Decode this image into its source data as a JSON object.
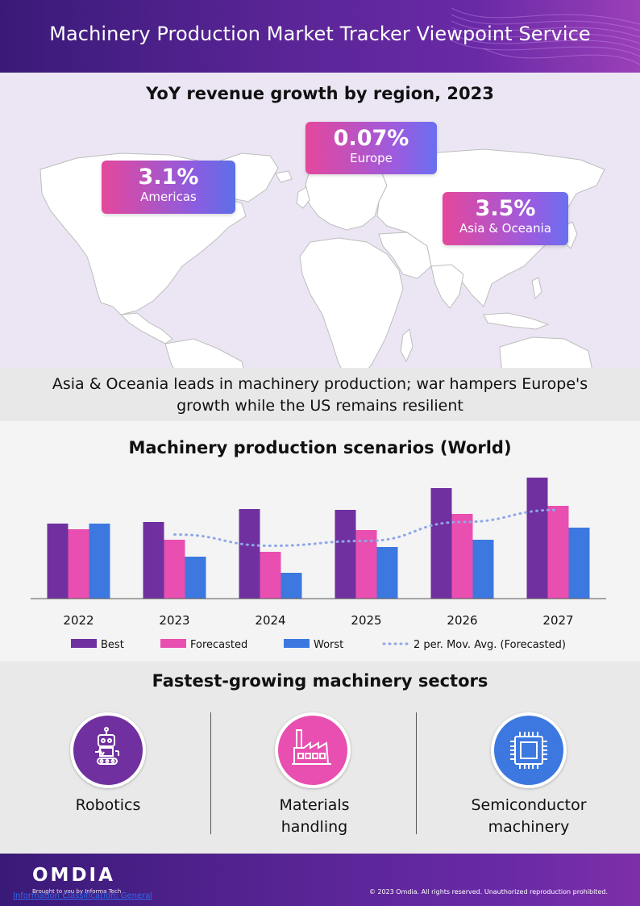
{
  "header": {
    "title": "Machinery Production Market Tracker Viewpoint Service"
  },
  "map_section": {
    "title": "YoY revenue growth by region, 2023",
    "callouts": {
      "americas": {
        "value": "3.1%",
        "region": "Americas"
      },
      "europe": {
        "value": "0.07%",
        "region": "Europe"
      },
      "asia": {
        "value": "3.5%",
        "region": "Asia & Oceania"
      }
    }
  },
  "summary": {
    "line1": "Asia & Oceania leads in machinery production; war hampers Europe's",
    "line2": "growth while the US remains resilient"
  },
  "chart_section": {
    "title": "Machinery production scenarios (World)"
  },
  "chart_data": {
    "type": "bar",
    "title": "Machinery production scenarios (World)",
    "categories": [
      "2022",
      "2023",
      "2024",
      "2025",
      "2026",
      "2027"
    ],
    "series": [
      {
        "name": "Best",
        "color": "#7030a0",
        "values": [
          93,
          95,
          111,
          110,
          137,
          150
        ]
      },
      {
        "name": "Forecasted",
        "color": "#e84fb0",
        "values": [
          86,
          73,
          58,
          85,
          105,
          115
        ]
      },
      {
        "name": "Worst",
        "color": "#3c78e0",
        "values": [
          93,
          52,
          32,
          64,
          73,
          88
        ]
      }
    ],
    "trendline": {
      "name": "2 per. Mov. Avg. (Forecasted)",
      "color": "#8fa8e8",
      "values": [
        null,
        79.5,
        65.5,
        71.5,
        95,
        110
      ]
    },
    "ylim": [
      0,
      160
    ],
    "xlabel": "",
    "ylabel": "",
    "legend": "bottom",
    "grid": false
  },
  "sectors": {
    "title": "Fastest-growing machinery sectors",
    "items": [
      {
        "line1": "Robotics",
        "line2": "",
        "icon": "robot-icon",
        "color": "#7030a0"
      },
      {
        "line1": "Materials",
        "line2": "handling",
        "icon": "factory-icon",
        "color": "#e84fb0"
      },
      {
        "line1": "Semiconductor",
        "line2": "machinery",
        "icon": "chip-icon",
        "color": "#3c78e0"
      }
    ]
  },
  "footer": {
    "logo": "OMDIA",
    "tagline": "Brought to you by Informa Tech",
    "classification": "Information Classification: General",
    "copyright": "© 2023 Omdia. All rights reserved. Unauthorized reproduction prohibited."
  }
}
